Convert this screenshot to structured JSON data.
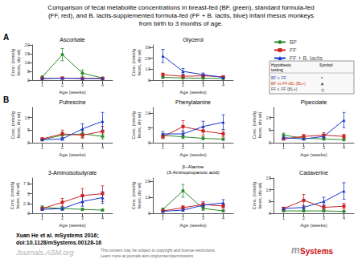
{
  "title": "Comparison of fecal metabolite concentrations in breast-fed (BF, green), standard formula-fed\n(FF, red), and B. lactis-supplemented formula-fed (FF + B. lactis, blue) infant rhesus monkeys\nfrom birth to 3 months of age.",
  "legend": "upper right",
  "chart_data": [
    {
      "type": "line",
      "title": "Ascorbate",
      "xlabel": "Age (weeks)",
      "ylabel": "Conc. (nmol/g\nfeces, dry wt)",
      "x": [
        1,
        2,
        3,
        4
      ],
      "xlim": [
        0.5,
        4.5
      ],
      "xticks": [
        1,
        2,
        3,
        4
      ],
      "ylim": [
        0,
        20
      ],
      "yticks": [
        0,
        5,
        10,
        15,
        20
      ],
      "grid": false,
      "series": [
        {
          "name": "BF",
          "color": "#2d8a2d",
          "marker": "circle",
          "values": [
            1.8,
            14.5,
            4.0,
            1.2
          ],
          "errors": [
            0.5,
            3.5,
            1.8,
            0.3
          ]
        },
        {
          "name": "FF",
          "color": "#cc2222",
          "marker": "square",
          "values": [
            1.0,
            1.2,
            1.0,
            1.0
          ],
          "errors": [
            0.2,
            0.2,
            0.2,
            0.1
          ]
        },
        {
          "name": "FF + B. lactis",
          "color": "#1535cc",
          "marker": "triangle",
          "values": [
            1.0,
            1.1,
            1.0,
            1.0
          ],
          "errors": [
            0.2,
            0.2,
            0.2,
            0.1
          ]
        }
      ]
    },
    {
      "type": "line",
      "title": "Glycerol",
      "xlabel": "Age (weeks)",
      "ylabel": "Conc. (nmol/g\nfeces, dry wt)",
      "x": [
        1,
        2,
        3,
        4
      ],
      "xlim": [
        0.5,
        4.5
      ],
      "xticks": [
        1,
        2,
        3,
        4
      ],
      "ylim": [
        0,
        32
      ],
      "yticks": [
        0,
        10,
        20,
        30
      ],
      "grid": false,
      "series": [
        {
          "name": "BF",
          "color": "#2d8a2d",
          "marker": "circle",
          "values": [
            2.5,
            2.0,
            1.8,
            1.5
          ],
          "errors": [
            0.5,
            0.5,
            0.5,
            0.4
          ]
        },
        {
          "name": "FF",
          "color": "#cc2222",
          "marker": "square",
          "values": [
            5.0,
            3.5,
            4.0,
            3.0
          ],
          "errors": [
            1.5,
            1.0,
            1.2,
            0.8
          ]
        },
        {
          "name": "FF + B. lactis",
          "color": "#1535cc",
          "marker": "triangle",
          "values": [
            22.0,
            8.0,
            5.0,
            2.5
          ],
          "errors": [
            6.0,
            2.5,
            1.5,
            0.5
          ]
        }
      ]
    },
    {
      "type": "line",
      "title": "Putrescine",
      "xlabel": "Age (weeks)",
      "ylabel": "Conc. (nmol/g\nfeces, dry wt)",
      "x": [
        1,
        2,
        3,
        4
      ],
      "xlim": [
        0.5,
        4.5
      ],
      "xticks": [
        1,
        2,
        3,
        4
      ],
      "ylim": [
        0,
        14
      ],
      "yticks": [
        0,
        5,
        10
      ],
      "grid": false,
      "series": [
        {
          "name": "BF",
          "color": "#2d8a2d",
          "marker": "circle",
          "values": [
            1.2,
            3.0,
            3.5,
            2.5
          ],
          "errors": [
            0.3,
            1.2,
            1.5,
            1.0
          ]
        },
        {
          "name": "FF",
          "color": "#cc2222",
          "marker": "square",
          "values": [
            1.5,
            3.5,
            3.0,
            4.5
          ],
          "errors": [
            0.4,
            1.5,
            1.2,
            2.0
          ]
        },
        {
          "name": "FF + B. lactis",
          "color": "#1535cc",
          "marker": "triangle",
          "values": [
            1.2,
            1.5,
            5.5,
            8.5
          ],
          "errors": [
            0.3,
            0.5,
            2.0,
            3.5
          ]
        }
      ]
    },
    {
      "type": "line",
      "title": "Phenylalanine",
      "xlabel": "Age (weeks)",
      "ylabel": "Conc. (nmol/g\nfeces, dry wt)",
      "x": [
        1,
        2,
        3,
        4
      ],
      "xlim": [
        0.5,
        4.5
      ],
      "xticks": [
        1,
        2,
        3,
        4
      ],
      "ylim": [
        0,
        12
      ],
      "yticks": [
        0,
        5,
        10
      ],
      "grid": false,
      "series": [
        {
          "name": "BF",
          "color": "#2d8a2d",
          "marker": "circle",
          "values": [
            2.5,
            2.0,
            1.5,
            1.2
          ],
          "errors": [
            0.6,
            0.6,
            0.5,
            0.4
          ]
        },
        {
          "name": "FF",
          "color": "#cc2222",
          "marker": "square",
          "values": [
            2.0,
            5.5,
            4.0,
            3.0
          ],
          "errors": [
            0.6,
            2.0,
            1.5,
            1.0
          ]
        },
        {
          "name": "FF + B. lactis",
          "color": "#1535cc",
          "marker": "triangle",
          "values": [
            3.0,
            3.0,
            5.5,
            7.0
          ],
          "errors": [
            0.8,
            1.0,
            1.8,
            2.5
          ]
        }
      ]
    },
    {
      "type": "line",
      "title": "Pipecolate",
      "xlabel": "Age (weeks)",
      "ylabel": "Conc. (nmol/g\nfeces, dry wt)",
      "x": [
        1,
        2,
        3,
        4
      ],
      "xlim": [
        0.5,
        4.5
      ],
      "xticks": [
        1,
        2,
        3,
        4
      ],
      "ylim": [
        0,
        14
      ],
      "yticks": [
        0,
        5,
        10
      ],
      "grid": false,
      "series": [
        {
          "name": "BF",
          "color": "#2d8a2d",
          "marker": "circle",
          "values": [
            3.0,
            1.8,
            1.5,
            1.2
          ],
          "errors": [
            0.8,
            0.6,
            0.5,
            0.4
          ]
        },
        {
          "name": "FF",
          "color": "#cc2222",
          "marker": "square",
          "values": [
            1.5,
            2.5,
            3.0,
            2.5
          ],
          "errors": [
            0.4,
            0.8,
            1.0,
            0.8
          ]
        },
        {
          "name": "FF + B. lactis",
          "color": "#1535cc",
          "marker": "triangle",
          "values": [
            2.0,
            1.5,
            2.5,
            9.0
          ],
          "errors": [
            0.5,
            0.4,
            0.8,
            3.0
          ]
        }
      ]
    },
    {
      "type": "line",
      "title": "3-Aminoisobutyrate",
      "xlabel": "Age (weeks)",
      "ylabel": "Conc. (nmol/g\nfeces, dry wt)",
      "x": [
        1,
        2,
        3,
        4
      ],
      "xlim": [
        0.5,
        4.5
      ],
      "xticks": [
        1,
        2,
        3,
        4
      ],
      "ylim": [
        0,
        9
      ],
      "yticks": [
        0,
        2.5,
        5,
        7.5
      ],
      "grid": false,
      "series": [
        {
          "name": "BF",
          "color": "#2d8a2d",
          "marker": "circle",
          "values": [
            1.5,
            1.2,
            1.0,
            0.8
          ],
          "errors": [
            0.4,
            0.4,
            0.3,
            0.3
          ]
        },
        {
          "name": "FF",
          "color": "#cc2222",
          "marker": "square",
          "values": [
            1.2,
            2.8,
            4.5,
            5.0
          ],
          "errors": [
            0.3,
            1.0,
            1.8,
            2.0
          ]
        },
        {
          "name": "FF + B. lactis",
          "color": "#1535cc",
          "marker": "triangle",
          "values": [
            1.0,
            1.2,
            3.0,
            4.0
          ],
          "errors": [
            0.2,
            0.4,
            1.2,
            1.5
          ]
        }
      ]
    },
    {
      "type": "line",
      "title": "β–Alanine\n(3-Aminopropanoic acid)",
      "xlabel": "Age (weeks)",
      "ylabel": "Conc. (nmol/g\nfeces, dry wt)",
      "x": [
        1,
        2,
        3,
        4
      ],
      "xlim": [
        0.5,
        4.5
      ],
      "xticks": [
        1,
        2,
        3,
        4
      ],
      "ylim": [
        0,
        22
      ],
      "yticks": [
        0,
        10,
        20
      ],
      "grid": false,
      "series": [
        {
          "name": "BF",
          "color": "#2d8a2d",
          "marker": "circle",
          "values": [
            2.5,
            14.0,
            3.0,
            1.5
          ],
          "errors": [
            0.6,
            4.0,
            1.2,
            0.5
          ]
        },
        {
          "name": "FF",
          "color": "#cc2222",
          "marker": "square",
          "values": [
            1.5,
            3.5,
            5.5,
            4.5
          ],
          "errors": [
            0.4,
            1.2,
            1.8,
            1.5
          ]
        },
        {
          "name": "FF + B. lactis",
          "color": "#1535cc",
          "marker": "triangle",
          "values": [
            1.2,
            2.0,
            5.0,
            6.5
          ],
          "errors": [
            0.3,
            0.6,
            1.5,
            2.0
          ]
        }
      ]
    },
    {
      "type": "line",
      "title": "Cadaverine",
      "xlabel": "Age (weeks)",
      "ylabel": "Conc. (nmol/g\nfeces, dry wt)",
      "x": [
        1,
        2,
        3,
        4
      ],
      "xlim": [
        0.5,
        4.5
      ],
      "xticks": [
        1,
        2,
        3,
        4
      ],
      "ylim": [
        0,
        15
      ],
      "yticks": [
        0,
        5,
        10,
        15
      ],
      "grid": false,
      "series": [
        {
          "name": "BF",
          "color": "#2d8a2d",
          "marker": "circle",
          "values": [
            1.0,
            1.0,
            1.0,
            0.8
          ],
          "errors": [
            0.3,
            0.3,
            0.3,
            0.2
          ]
        },
        {
          "name": "FF",
          "color": "#cc2222",
          "marker": "square",
          "values": [
            2.0,
            5.5,
            2.5,
            3.0
          ],
          "errors": [
            0.6,
            2.5,
            1.0,
            1.2
          ]
        },
        {
          "name": "FF + B. lactis",
          "color": "#1535cc",
          "marker": "triangle",
          "values": [
            2.0,
            2.5,
            5.0,
            9.5
          ],
          "errors": [
            0.5,
            0.8,
            1.8,
            3.5
          ]
        }
      ]
    }
  ],
  "annotations": [
    {
      "text": "A"
    },
    {
      "text": "B"
    },
    {
      "text": "Hypothesis\ntesting"
    },
    {
      "text": "Symbol"
    },
    {
      "text": "BF v. FF",
      "color": "#4444aa"
    },
    {
      "text": "*"
    },
    {
      "text": "BF vs FF+BL (BL+)",
      "color": "#cc4422"
    },
    {
      "text": "#"
    },
    {
      "text": "FF v. FF (BL+)",
      "color": "#555555"
    },
    {
      "text": "◇"
    },
    {
      "text": "Xuan He et al. mSystems 2016;"
    },
    {
      "text": "doi:10.1128/mSystems.00128-16"
    },
    {
      "text": "Journals.ASM.org",
      "color": "#b0b0b0"
    },
    {
      "text": "This content may be subject to copyright and license restrictions.\nLearn more at journals.asm.org/content/permissions",
      "color": "#666666"
    },
    {
      "text": "m",
      "color": "#999999"
    },
    {
      "text": "Systems",
      "color": "#cc1111"
    }
  ]
}
